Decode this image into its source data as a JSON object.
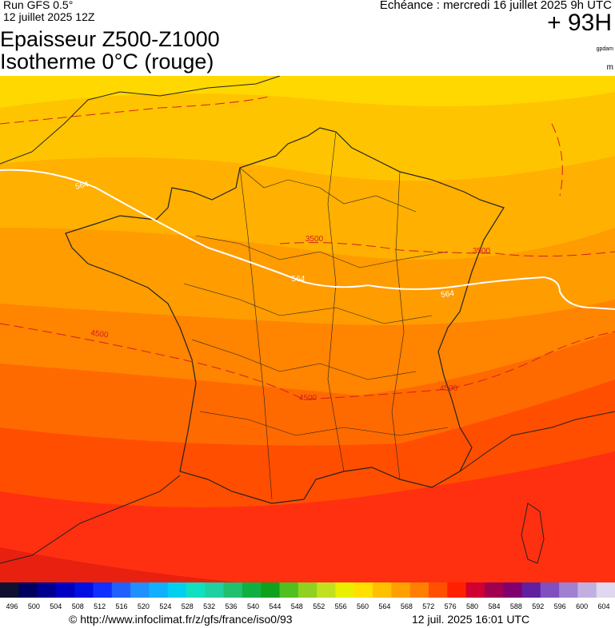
{
  "header": {
    "model": "Run GFS 0.5°",
    "run": "12 juillet 2025 12Z",
    "valid": "Echéance : mercredi 16 juillet 2025 9h UTC",
    "lead": "+ 93H",
    "title_line1": "Epaisseur Z500-Z1000",
    "title_line2": "Isotherme 0°C (rouge)",
    "unit_thickness": "gpdam",
    "unit_isotherm": "m"
  },
  "map": {
    "contour_labels": [
      "564",
      "564",
      "564",
      "3500",
      "3500",
      "4500",
      "4500",
      "4500"
    ]
  },
  "scale": {
    "labels": [
      496,
      500,
      504,
      508,
      512,
      516,
      520,
      524,
      528,
      532,
      536,
      540,
      544,
      548,
      552,
      556,
      560,
      564,
      568,
      572,
      576,
      580,
      584,
      588,
      592,
      596,
      600,
      604
    ]
  },
  "footer": {
    "url": "© http://www.infoclimat.fr/z/gfs/france/iso0/93",
    "timestamp": "12 juil. 2025 16:01 UTC"
  }
}
